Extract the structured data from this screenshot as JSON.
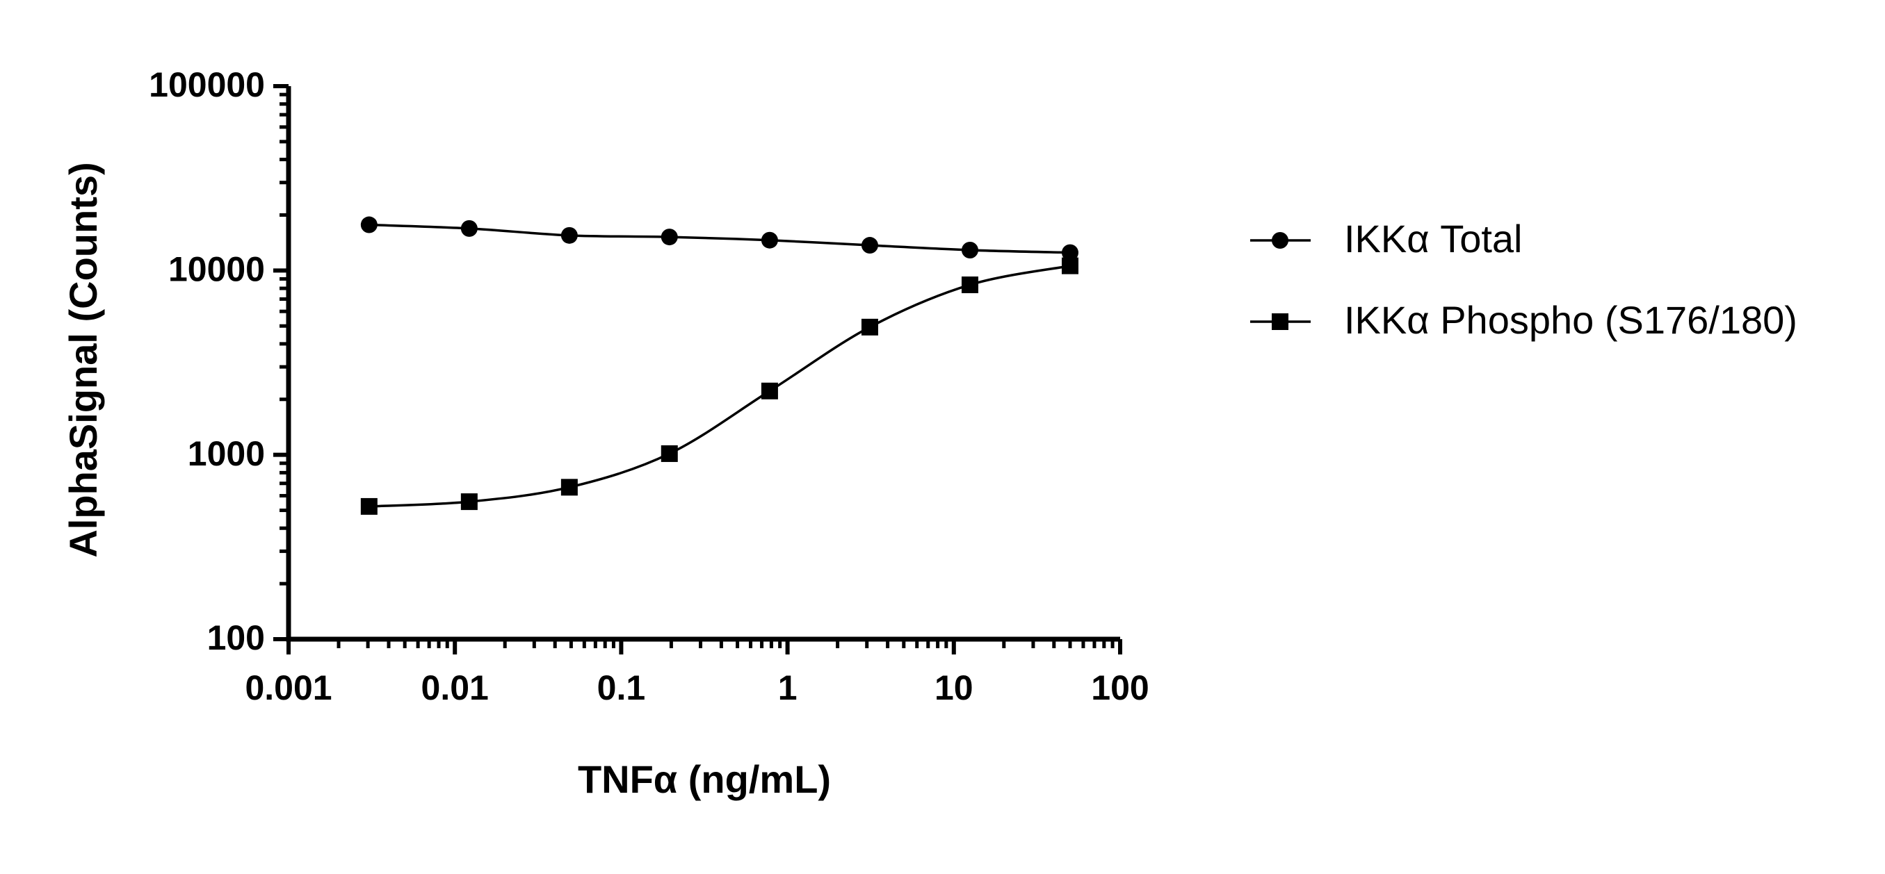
{
  "chart_data": {
    "type": "line",
    "x_label": "TNFα (ng/mL)",
    "y_label": "AlphaSignal (Counts)",
    "x": [
      0.00305,
      0.0122,
      0.0488,
      0.195,
      0.781,
      3.125,
      12.5,
      50
    ],
    "series": [
      {
        "name": "IKKα Total",
        "color": "#000000",
        "marker": "circle",
        "values": [
          17700,
          16900,
          15500,
          15200,
          14600,
          13700,
          12900,
          12500
        ]
      },
      {
        "name": "IKKα Phospho (S176/180)",
        "color": "#000000",
        "marker": "square",
        "values": [
          525,
          557,
          667,
          1015,
          2220,
          4930,
          8360,
          10600
        ]
      }
    ],
    "xscale": "log",
    "yscale": "log",
    "xlim": [
      0.001,
      100
    ],
    "ylim": [
      100,
      100000
    ],
    "xticks": [
      0.001,
      0.01,
      0.1,
      1,
      10,
      100
    ],
    "yticks": [
      100,
      1000,
      10000,
      100000
    ],
    "legend": "right"
  }
}
